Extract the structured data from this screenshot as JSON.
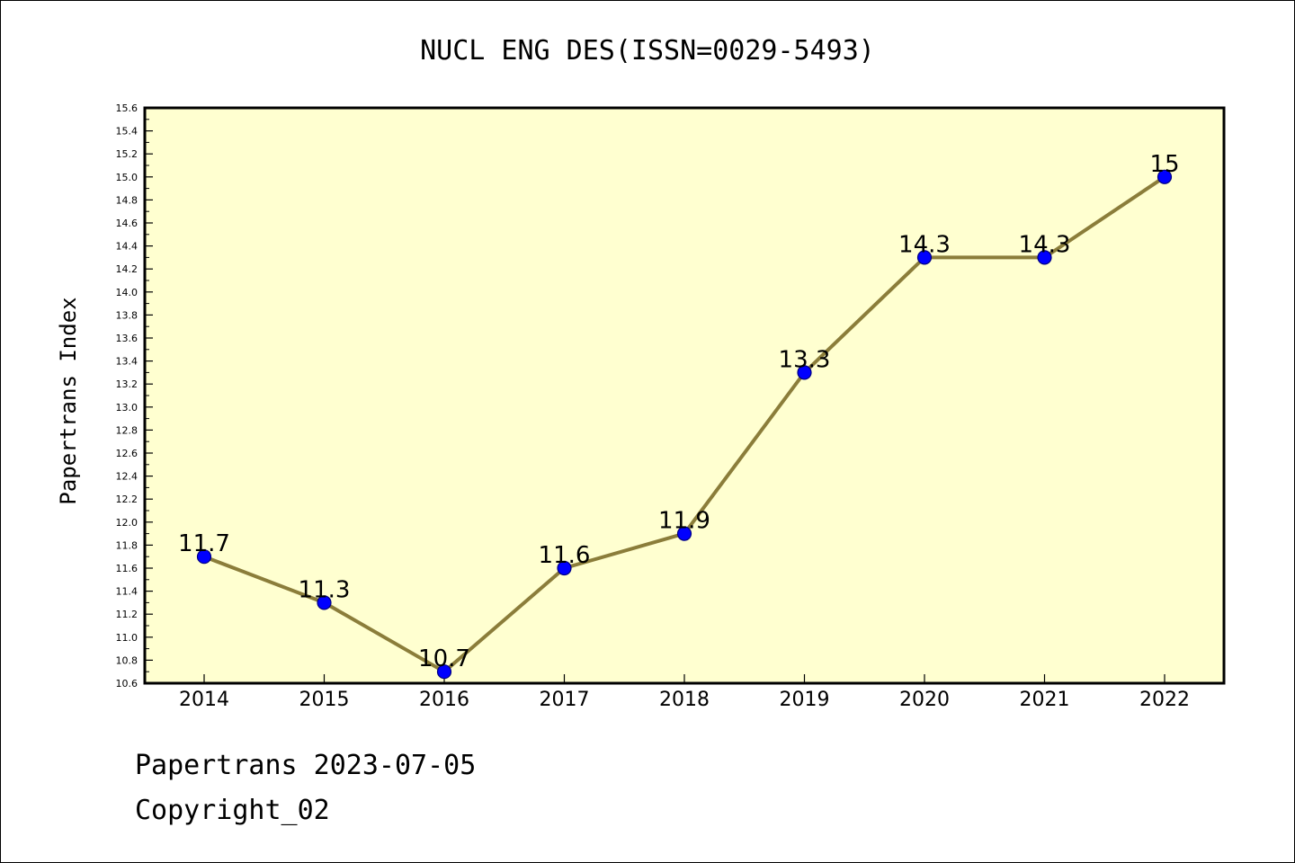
{
  "chart_data": {
    "type": "line",
    "title": "NUCL ENG DES(ISSN=0029-5493)",
    "xlabel": "",
    "ylabel": "Papertrans Index",
    "categories": [
      "2014",
      "2015",
      "2016",
      "2017",
      "2018",
      "2019",
      "2020",
      "2021",
      "2022"
    ],
    "series": [
      {
        "values": [
          11.7,
          11.3,
          10.7,
          11.6,
          11.9,
          13.3,
          14.3,
          14.3,
          15
        ],
        "labels": [
          "11.7",
          "11.3",
          "10.7",
          "11.6",
          "11.9",
          "13.3",
          "14.3",
          "14.3",
          "15"
        ]
      }
    ],
    "ylim": [
      10.6,
      15.6
    ],
    "yticks": [
      "10.6",
      "10.8",
      "11.0",
      "11.2",
      "11.4",
      "11.6",
      "11.8",
      "12.0",
      "12.2",
      "12.4",
      "12.6",
      "12.8",
      "13.0",
      "13.2",
      "13.4",
      "13.6",
      "13.8",
      "14.0",
      "14.2",
      "14.4",
      "14.6",
      "14.8",
      "15.0",
      "15.2",
      "15.4",
      "15.6"
    ],
    "grid": false,
    "legend": "none",
    "colors": {
      "plot_background": "#ffffd0",
      "line": "#8b7d3a",
      "marker_fill": "#0000ff",
      "marker_edge": "#000080",
      "axes": "#000000"
    }
  },
  "footer": {
    "line1": "Papertrans 2023-07-05",
    "line2": "Copyright_02"
  }
}
